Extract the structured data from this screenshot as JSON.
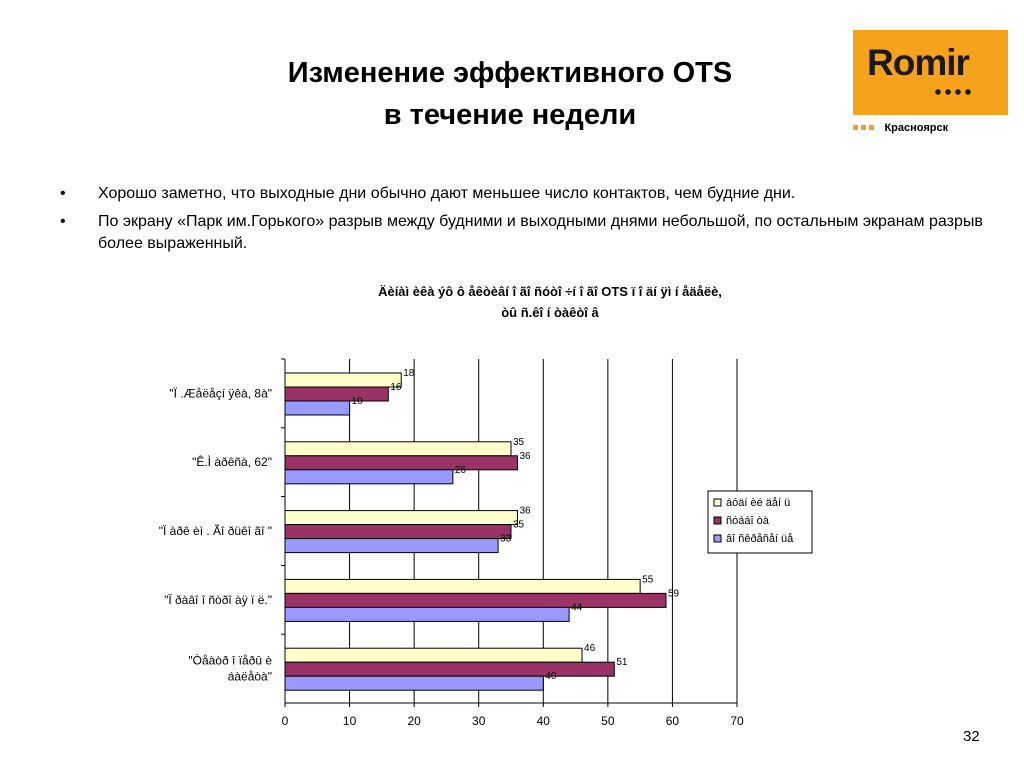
{
  "slide": {
    "title_line1": "Изменение эффективного OTS",
    "title_line2": "в течение недели",
    "logo_text": "Romir",
    "logo_city": "Красноярск",
    "page_number": "32",
    "bullets": [
      "Хорошо заметно, что выходные дни обычно дают меньшее число контактов, чем будние дни.",
      "По экрану «Парк им.Горького» разрыв между будними и выходными днями небольшой, по остальным экранам разрыв более выраженный."
    ],
    "bullet_char": "•"
  },
  "colors": {
    "logo_bg": "#f6a21d",
    "series1": "#ffffcc",
    "series2": "#993366",
    "series3": "#9999ff"
  },
  "chart_data": {
    "type": "bar",
    "orientation": "horizontal",
    "title_line1": "Äèíàì èêà ýô ô åêòèâí î ãî  ñóòî ÷í î ãî  OTS ï î  äí ÿì  í åäåëè,",
    "title_line2": "òû ñ.êî í òàêòî â",
    "categories": [
      "\"Ï .Æåëåçí ÿêà, 8à\"",
      "\"Ê.Ì  àðêñà, 62\"",
      "\"Ï àðê èì . Ãî ðüêî ãî \"",
      "\"Ï ðàâî î ñòðî àÿ ï ë.\"",
      "\"Òåàòð î ïåðû  è\náàëåòà\""
    ],
    "series": [
      {
        "name": "áóäí èé äåí ü",
        "color": "#ffffcc",
        "values": [
          18,
          35,
          36,
          55,
          46
        ]
      },
      {
        "name": "ñóááî òà",
        "color": "#993366",
        "values": [
          16,
          36,
          35,
          59,
          51
        ]
      },
      {
        "name": "âî ñêðåñåí üå",
        "color": "#9999ff",
        "values": [
          10,
          26,
          33,
          44,
          40
        ]
      }
    ],
    "xlim": [
      0,
      70
    ],
    "xticks": [
      0,
      10,
      20,
      30,
      40,
      50,
      60,
      70
    ],
    "grid": true,
    "legend": "right"
  }
}
